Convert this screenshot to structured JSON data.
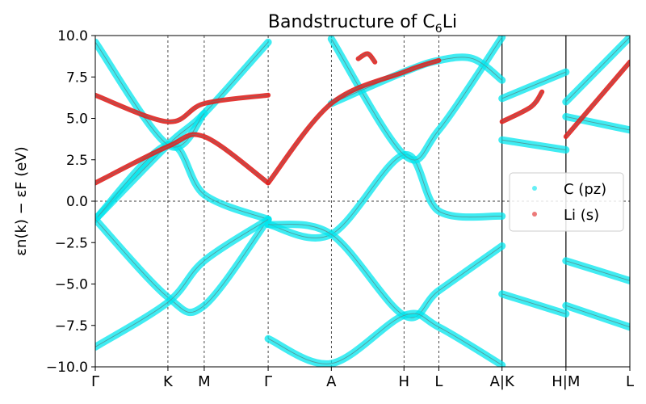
{
  "chart_data": {
    "type": "line",
    "title_main": "Bandstructure of C",
    "title_sub": "6",
    "title_tail": "Li",
    "ylabel": "εn(k) − εF (eV)",
    "ylim": [
      -10.0,
      10.0
    ],
    "yticks": [
      "10.0",
      "7.5",
      "5.0",
      "2.5",
      "0.0",
      "−2.5",
      "−5.0",
      "−7.5",
      "−10.0"
    ],
    "ytick_values": [
      10.0,
      7.5,
      5.0,
      2.5,
      0.0,
      -2.5,
      -5.0,
      -7.5,
      -10.0
    ],
    "xticks": [
      "Γ",
      "K",
      "M",
      "Γ",
      "A",
      "H",
      "L",
      "A|K",
      "H|M",
      "L"
    ],
    "xtick_values": [
      0.0,
      1.0,
      1.5,
      2.38,
      3.25,
      4.25,
      4.73,
      5.6,
      6.48,
      7.36
    ],
    "segment_breaks": [
      5.6,
      6.48
    ],
    "grid": true,
    "legend_position": "right",
    "colors": {
      "c_pz": "#00e5ee",
      "li_s": "#e0221f",
      "band": "#7a7a7a"
    },
    "series": [
      {
        "name": "C (pz)",
        "description": "Dirac cones at K and H",
        "bands": [
          [
            [
              0,
              -1.1
            ],
            [
              1,
              3.4
            ],
            [
              1.5,
              5.3
            ],
            [
              2.38,
              9.6
            ]
          ],
          [
            [
              0,
              -1.1
            ],
            [
              1,
              3.4
            ],
            [
              1.5,
              0.4
            ],
            [
              2.38,
              -1.1
            ]
          ],
          [
            [
              0,
              -1.1
            ],
            [
              1,
              -5.8
            ],
            [
              1.5,
              -6.3
            ],
            [
              2.38,
              -1.1
            ]
          ],
          [
            [
              0,
              -8.8
            ],
            [
              1,
              -6.1
            ],
            [
              1.5,
              -3.6
            ],
            [
              2.38,
              -1.1
            ]
          ],
          [
            [
              0,
              9.6
            ],
            [
              1,
              3.4
            ],
            [
              1.5,
              5.3
            ]
          ],
          [
            [
              2.38,
              -1.4
            ],
            [
              3.25,
              -2.0
            ],
            [
              4.25,
              2.8
            ],
            [
              4.73,
              -0.6
            ],
            [
              5.6,
              -0.9
            ]
          ],
          [
            [
              2.38,
              -1.4
            ],
            [
              3.25,
              -2.0
            ],
            [
              4.25,
              -6.9
            ],
            [
              4.73,
              -5.4
            ],
            [
              5.6,
              -2.7
            ]
          ],
          [
            [
              2.38,
              -8.3
            ],
            [
              3.25,
              -9.8
            ],
            [
              4.25,
              -6.9
            ],
            [
              4.73,
              -7.6
            ],
            [
              5.6,
              -9.9
            ]
          ],
          [
            [
              3.25,
              9.8
            ],
            [
              4.25,
              2.8
            ],
            [
              4.73,
              4.3
            ],
            [
              5.6,
              9.9
            ]
          ],
          [
            [
              3.25,
              5.9
            ],
            [
              4.25,
              7.8
            ],
            [
              4.73,
              8.5
            ],
            [
              5.2,
              8.6
            ],
            [
              5.6,
              7.3
            ]
          ],
          [
            [
              5.6,
              3.7
            ],
            [
              6.48,
              3.1
            ]
          ],
          [
            [
              5.6,
              -5.6
            ],
            [
              6.48,
              -6.8
            ]
          ],
          [
            [
              5.6,
              6.2
            ],
            [
              6.48,
              7.8
            ]
          ],
          [
            [
              6.48,
              5.1
            ],
            [
              7.36,
              4.3
            ]
          ],
          [
            [
              6.48,
              -3.6
            ],
            [
              7.36,
              -4.8
            ]
          ],
          [
            [
              6.48,
              -6.3
            ],
            [
              7.36,
              -7.6
            ]
          ],
          [
            [
              6.48,
              6.0
            ],
            [
              7.36,
              9.9
            ]
          ]
        ]
      },
      {
        "name": "Li (s)",
        "description": "Li s-character band",
        "bands": [
          [
            [
              0,
              1.1
            ],
            [
              1,
              3.3
            ],
            [
              1.5,
              3.9
            ],
            [
              2.38,
              1.1
            ]
          ],
          [
            [
              0,
              6.4
            ],
            [
              1,
              4.8
            ],
            [
              1.5,
              5.9
            ],
            [
              2.38,
              6.4
            ]
          ],
          [
            [
              2.38,
              1.1
            ],
            [
              3.25,
              5.9
            ],
            [
              4.25,
              7.8
            ],
            [
              4.73,
              8.5
            ]
          ],
          [
            [
              5.6,
              4.8
            ],
            [
              6.0,
              5.7
            ],
            [
              6.15,
              6.6
            ]
          ],
          [
            [
              6.48,
              3.9
            ],
            [
              7.36,
              8.4
            ]
          ],
          [
            [
              3.62,
              8.6
            ],
            [
              3.75,
              8.9
            ],
            [
              3.85,
              8.4
            ]
          ]
        ]
      }
    ],
    "legend": [
      {
        "label": "C (pz)",
        "color": "#00e5ee"
      },
      {
        "label": "Li (s)",
        "color": "#e0221f"
      }
    ]
  }
}
